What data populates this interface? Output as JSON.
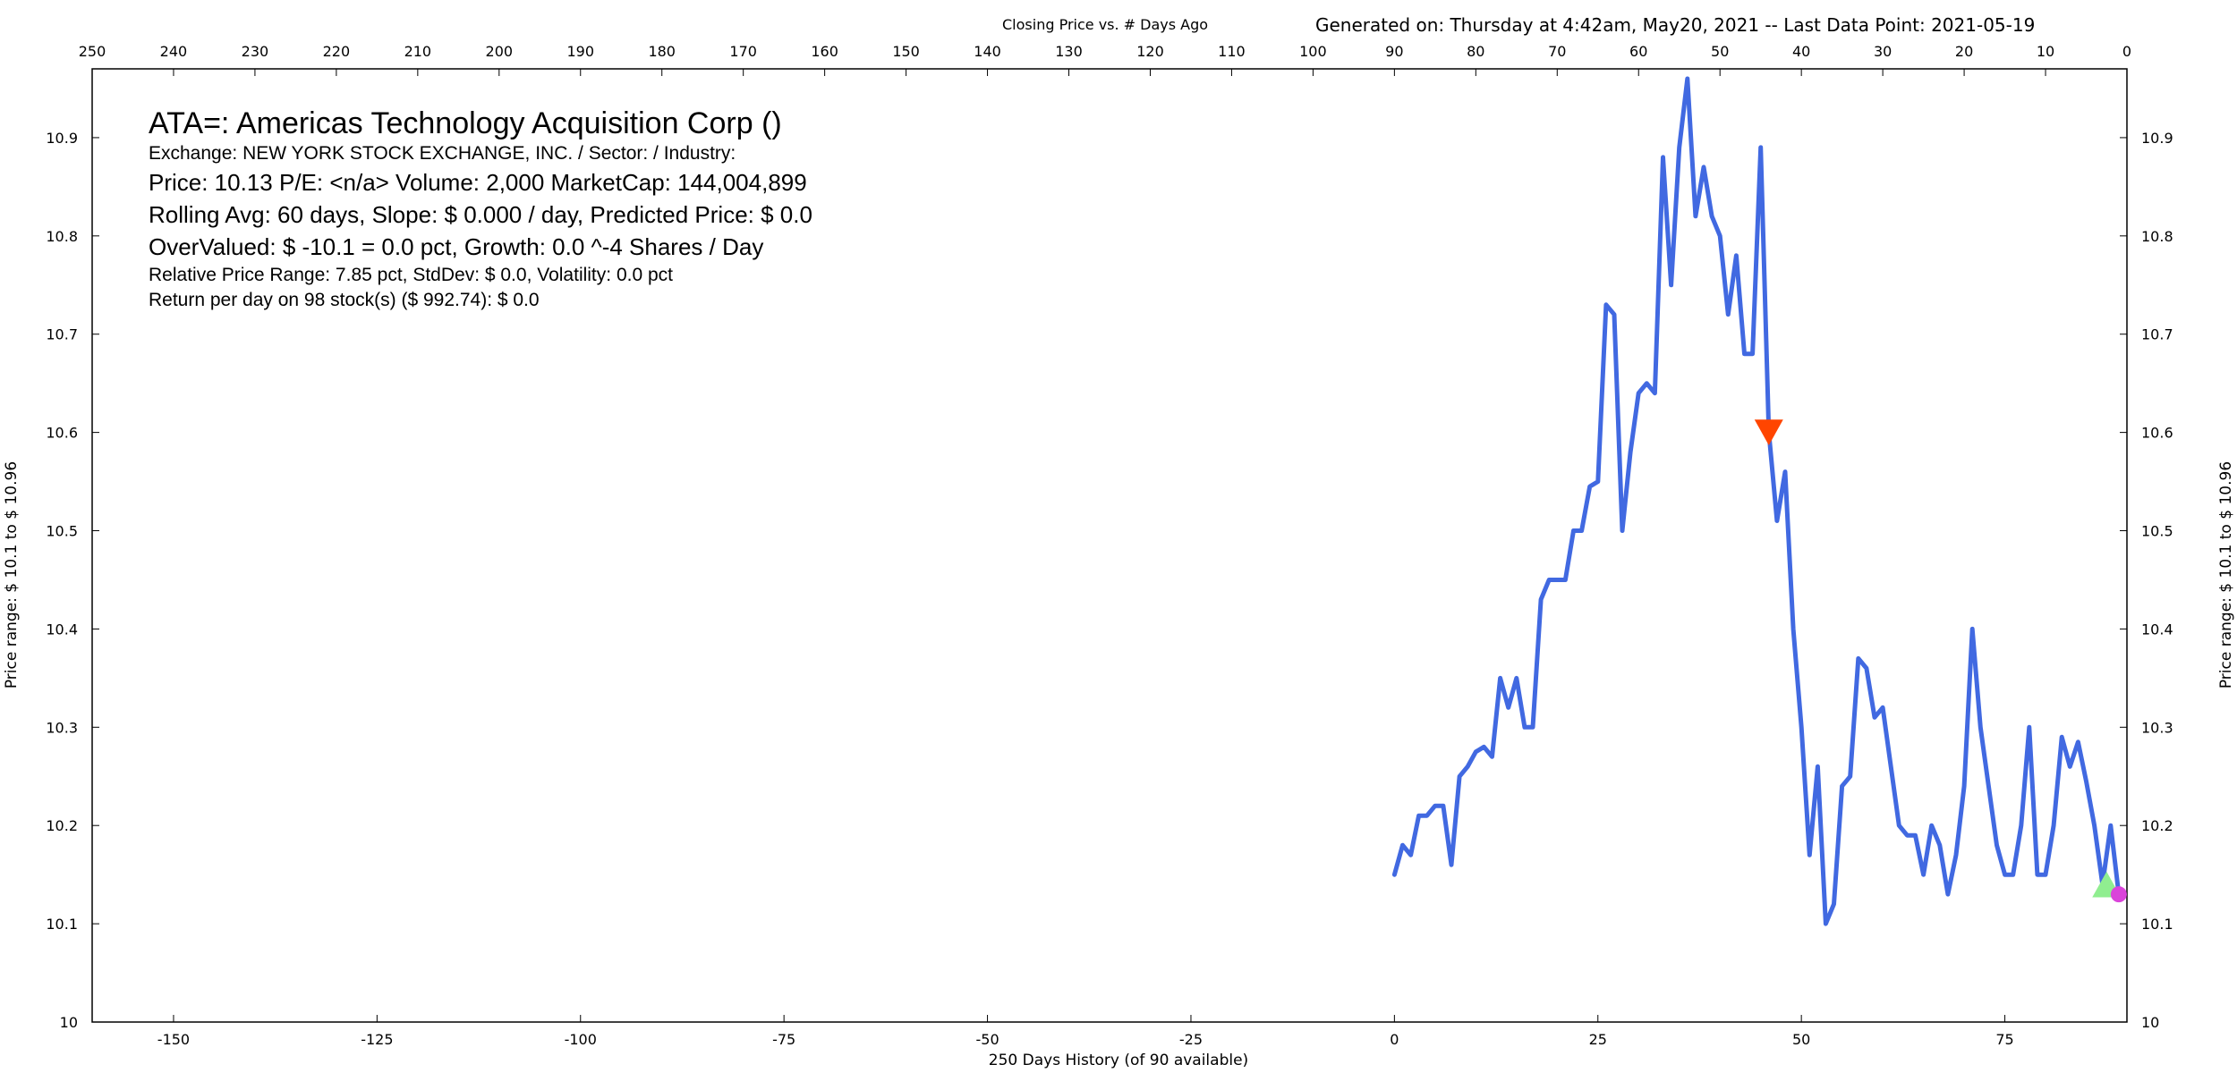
{
  "header": {
    "top_title": "Closing Price vs. # Days Ago",
    "generated": "Generated on:  Thursday at  4:42am, May20, 2021  --  Last Data Point:  2021-05-19"
  },
  "info": {
    "line1": "ATA=:  Americas Technology Acquisition Corp  ()",
    "line2": "Exchange: NEW YORK STOCK EXCHANGE, INC.  /  Sector:   /  Industry:",
    "line3": "Price: 10.13  P/E: <n/a> Volume: 2,000  MarketCap: 144,004,899",
    "line4": "Rolling Avg: 60 days, Slope: $ 0.000 / day, Predicted Price: $ 0.0",
    "line5": "OverValued: $ -10.1 = 0.0 pct,  Growth: 0.0 ^-4 Shares / Day",
    "line6": "Relative Price Range: 7.85 pct, StdDev: $ 0.0, Volatility: 0.0 pct",
    "line7": "Return per day on 98 stock(s) ($ 992.74): $ 0.0"
  },
  "chart_data": {
    "type": "line",
    "title": "Closing Price vs. # Days Ago",
    "xlabel": "250 Days History (of 90 available)",
    "ylabel": "Price range:  $ 10.1  to  $ 10.96",
    "ylabel_right": "Price range: $ 10.1  to  $ 10.96",
    "xlim": [
      -160,
      90
    ],
    "ylim": [
      10.0,
      10.97
    ],
    "x_ticks": [
      -150,
      -125,
      -100,
      -75,
      -50,
      -25,
      0,
      25,
      50,
      75
    ],
    "x2_ticks": [
      250,
      240,
      230,
      220,
      210,
      200,
      190,
      180,
      170,
      160,
      150,
      140,
      130,
      120,
      110,
      100,
      90,
      80,
      70,
      60,
      50,
      40,
      30,
      20,
      10,
      0
    ],
    "y_ticks": [
      "10",
      "10.1",
      "10.2",
      "10.3",
      "10.4",
      "10.5",
      "10.6",
      "10.7",
      "10.8",
      "10.9"
    ],
    "line_color": "#4169e1",
    "series": [
      {
        "values": [
          [
            0,
            10.15
          ],
          [
            1,
            10.18
          ],
          [
            2,
            10.17
          ],
          [
            3,
            10.21
          ],
          [
            4,
            10.21
          ],
          [
            5,
            10.22
          ],
          [
            6,
            10.22
          ],
          [
            7,
            10.16
          ],
          [
            8,
            10.25
          ],
          [
            9,
            10.26
          ],
          [
            10,
            10.275
          ],
          [
            11,
            10.28
          ],
          [
            12,
            10.27
          ],
          [
            13,
            10.35
          ],
          [
            14,
            10.32
          ],
          [
            15,
            10.35
          ],
          [
            16,
            10.3
          ],
          [
            17,
            10.3
          ],
          [
            18,
            10.43
          ],
          [
            19,
            10.45
          ],
          [
            20,
            10.45
          ],
          [
            21,
            10.45
          ],
          [
            22,
            10.5
          ],
          [
            23,
            10.5
          ],
          [
            24,
            10.545
          ],
          [
            25,
            10.55
          ],
          [
            26,
            10.73
          ],
          [
            27,
            10.72
          ],
          [
            28,
            10.5
          ],
          [
            29,
            10.58
          ],
          [
            30,
            10.64
          ],
          [
            31,
            10.65
          ],
          [
            32,
            10.64
          ],
          [
            33,
            10.88
          ],
          [
            34,
            10.75
          ],
          [
            35,
            10.89
          ],
          [
            36,
            10.96
          ],
          [
            37,
            10.82
          ],
          [
            38,
            10.87
          ],
          [
            39,
            10.82
          ],
          [
            40,
            10.8
          ],
          [
            41,
            10.72
          ],
          [
            42,
            10.78
          ],
          [
            43,
            10.68
          ],
          [
            44,
            10.68
          ],
          [
            45,
            10.89
          ],
          [
            46,
            10.6
          ],
          [
            47,
            10.51
          ],
          [
            48,
            10.56
          ],
          [
            49,
            10.4
          ],
          [
            50,
            10.3
          ],
          [
            51,
            10.17
          ],
          [
            52,
            10.26
          ],
          [
            53,
            10.1
          ],
          [
            54,
            10.12
          ],
          [
            55,
            10.24
          ],
          [
            56,
            10.25
          ],
          [
            57,
            10.37
          ],
          [
            58,
            10.36
          ],
          [
            59,
            10.31
          ],
          [
            60,
            10.32
          ],
          [
            61,
            10.26
          ],
          [
            62,
            10.2
          ],
          [
            63,
            10.19
          ],
          [
            64,
            10.19
          ],
          [
            65,
            10.15
          ],
          [
            66,
            10.2
          ],
          [
            67,
            10.18
          ],
          [
            68,
            10.13
          ],
          [
            69,
            10.17
          ],
          [
            70,
            10.24
          ],
          [
            71,
            10.4
          ],
          [
            72,
            10.3
          ],
          [
            73,
            10.24
          ],
          [
            74,
            10.18
          ],
          [
            75,
            10.15
          ],
          [
            76,
            10.15
          ],
          [
            77,
            10.2
          ],
          [
            78,
            10.3
          ],
          [
            79,
            10.15
          ],
          [
            80,
            10.15
          ],
          [
            81,
            10.2
          ],
          [
            82,
            10.29
          ],
          [
            83,
            10.26
          ],
          [
            84,
            10.285
          ],
          [
            85,
            10.245
          ],
          [
            86,
            10.2
          ],
          [
            87,
            10.14
          ],
          [
            88,
            10.2
          ],
          [
            89,
            10.13
          ]
        ]
      }
    ],
    "markers": [
      {
        "shape": "triangle-down",
        "x": 46,
        "y": 10.6,
        "color": "#ff4500"
      },
      {
        "shape": "triangle-up",
        "x": 87.5,
        "y": 10.14,
        "color": "#90ee90"
      },
      {
        "shape": "circle",
        "x": 89,
        "y": 10.13,
        "color": "#da44da"
      }
    ],
    "grid": false
  }
}
